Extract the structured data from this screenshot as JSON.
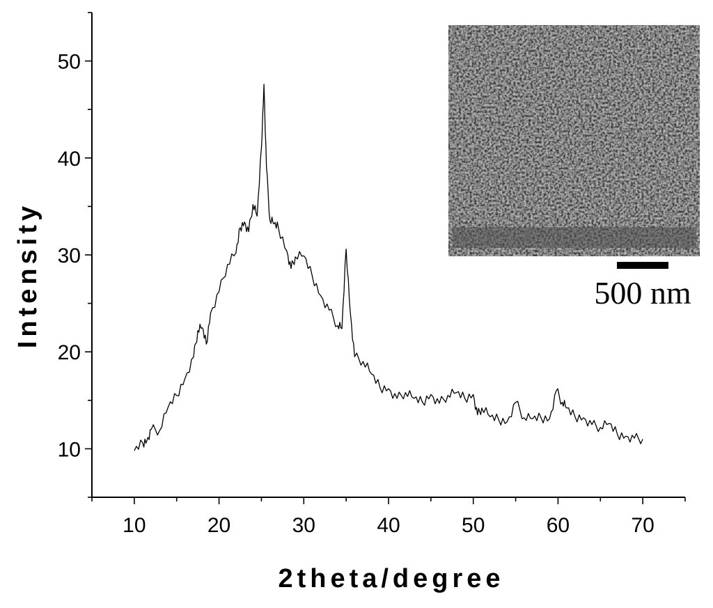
{
  "chart_data": {
    "type": "line",
    "title": "",
    "xlabel": "2theta/degree",
    "ylabel": "Intensity",
    "xlim": [
      5,
      75
    ],
    "ylim": [
      5,
      55
    ],
    "x_ticks": [
      10,
      20,
      30,
      40,
      50,
      60,
      70
    ],
    "y_ticks": [
      10,
      20,
      30,
      40,
      50
    ],
    "grid": false,
    "legend": "none",
    "line_color": "#000000",
    "series": [
      {
        "x": [
          10,
          11,
          11.5,
          12,
          13,
          14,
          15,
          16,
          17,
          17.5,
          18,
          18.5,
          19,
          20,
          21,
          22,
          22.5,
          23,
          23.5,
          24,
          24.5,
          25,
          25.3,
          25.6,
          26,
          26.5,
          27,
          28,
          28.5,
          29,
          30,
          31,
          32,
          33,
          34,
          34.5,
          35,
          35.5,
          36,
          37,
          38,
          39,
          40,
          41,
          42,
          43,
          44,
          45,
          46,
          47,
          48,
          49,
          50,
          50.5,
          51,
          52,
          53,
          54,
          55,
          56,
          57,
          58,
          59,
          59.8,
          60.5,
          61,
          62,
          63,
          64,
          65,
          66,
          67,
          68,
          69,
          70
        ],
        "values": [
          9.8,
          10.6,
          10.9,
          12,
          11.9,
          14.3,
          15.5,
          17.3,
          19.5,
          22.2,
          22.5,
          20.8,
          24,
          26.2,
          29,
          30.2,
          32.8,
          33.4,
          32.4,
          35.2,
          34,
          41,
          47.6,
          39,
          33.6,
          33.2,
          32.8,
          30.4,
          28.6,
          29.8,
          29.9,
          27.8,
          25.8,
          24.3,
          22.7,
          22.4,
          30.6,
          24,
          19.5,
          19,
          17.7,
          16.3,
          16.2,
          15.2,
          15.8,
          15.2,
          14.8,
          15.6,
          14.7,
          15.5,
          15.8,
          15.2,
          15.6,
          13.5,
          14.2,
          13.3,
          13,
          12.8,
          14.8,
          13.2,
          13.1,
          13.2,
          13.1,
          16,
          14.8,
          14.2,
          13.3,
          13.2,
          12.5,
          12.2,
          12.6,
          11.5,
          11.3,
          11.1,
          11
        ]
      }
    ]
  },
  "inset": {
    "scale_bar_label": "500 nm"
  }
}
